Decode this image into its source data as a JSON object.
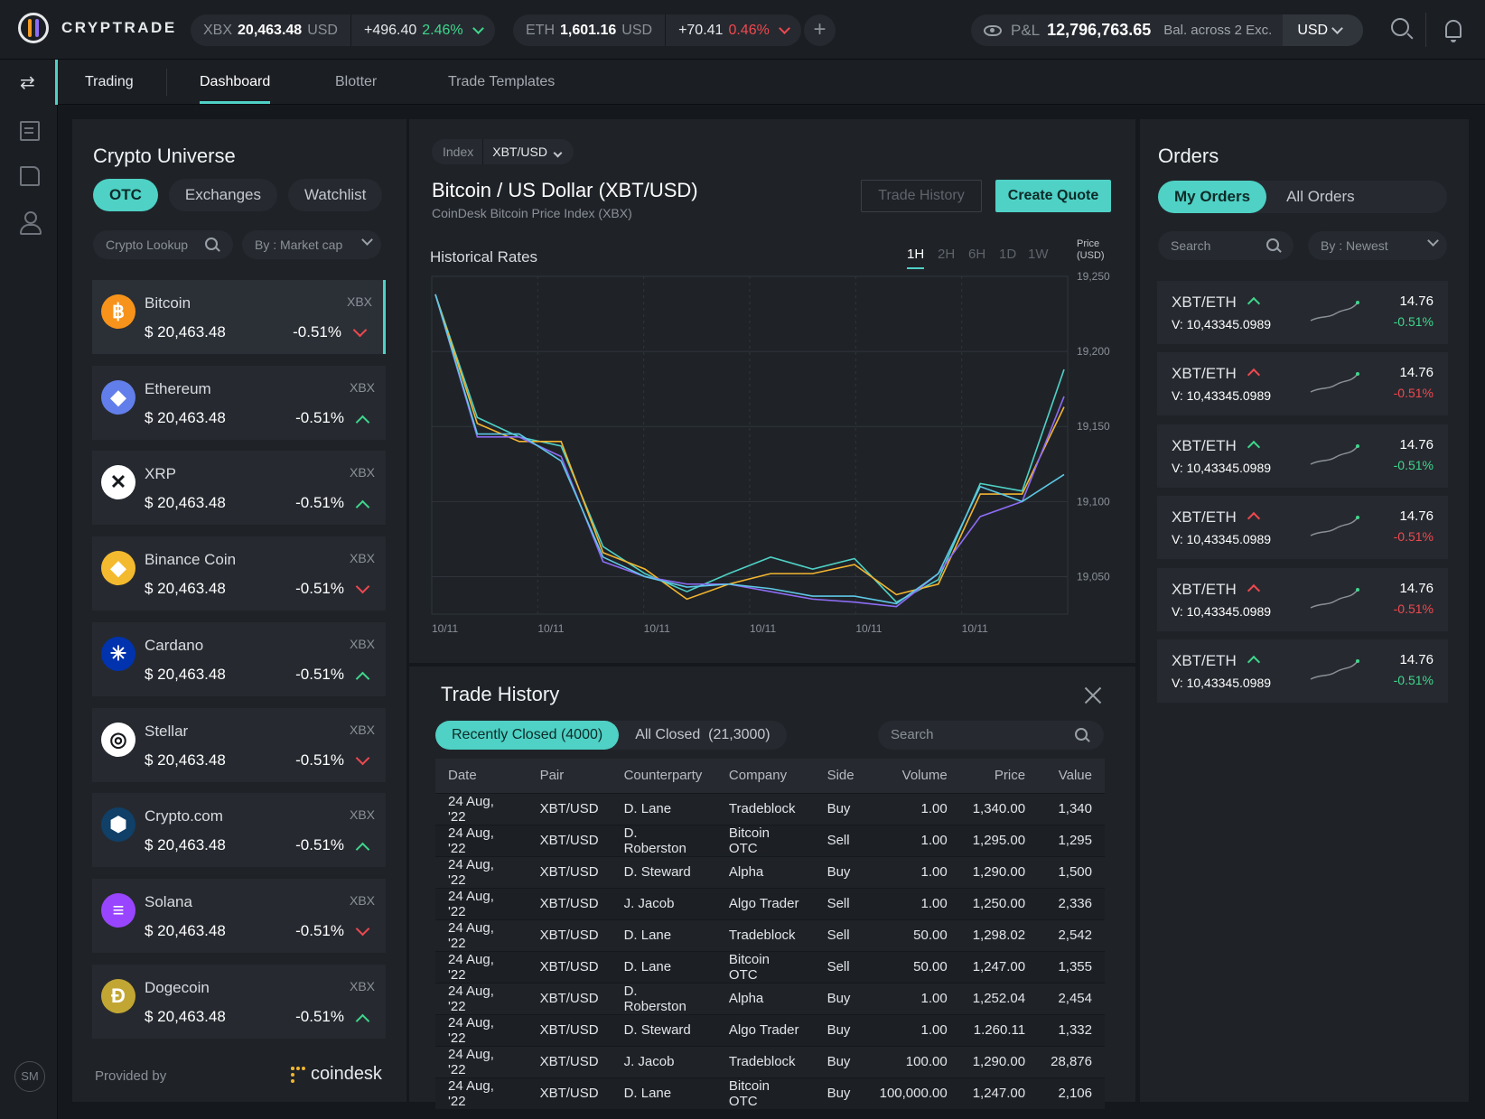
{
  "app": {
    "name": "CRYPTRADE"
  },
  "header": {
    "tickers": [
      {
        "symbol": "XBX",
        "price": "20,463.48",
        "currency": "USD",
        "change": "+496.40",
        "pct": "2.46%",
        "direction": "up"
      },
      {
        "symbol": "ETH",
        "price": "1,601.16",
        "currency": "USD",
        "change": "+70.41",
        "pct": "0.46%",
        "direction": "down"
      }
    ],
    "add_label": "+",
    "pnl_label": "P&L",
    "pnl_value": "12,796,763.65",
    "balance_label": "Bal. across 2 Exc.",
    "currency": "USD",
    "avatar_initials": "SM"
  },
  "nav": {
    "section": "Trading",
    "tabs": [
      "Dashboard",
      "Blotter",
      "Trade Templates"
    ],
    "active_tab": "Dashboard"
  },
  "universe": {
    "title": "Crypto Universe",
    "tabs": [
      "OTC",
      "Exchanges",
      "Watchlist"
    ],
    "active_tab": "OTC",
    "lookup_placeholder": "Crypto Lookup",
    "sort_label": "By : Market cap",
    "coins": [
      {
        "name": "Bitcoin",
        "source": "XBX",
        "price": "$ 20,463.48",
        "change": "-0.51%",
        "direction": "down",
        "icon": "bitcoin-icon",
        "glyph": "฿",
        "color": "#f7931a"
      },
      {
        "name": "Ethereum",
        "source": "XBX",
        "price": "$ 20,463.48",
        "change": "-0.51%",
        "direction": "up",
        "icon": "ethereum-icon",
        "glyph": "◆",
        "color": "#627eea"
      },
      {
        "name": "XRP",
        "source": "XBX",
        "price": "$ 20,463.48",
        "change": "-0.51%",
        "direction": "up",
        "icon": "xrp-icon",
        "glyph": "✕",
        "color": "#ffffff"
      },
      {
        "name": "Binance Coin",
        "source": "XBX",
        "price": "$ 20,463.48",
        "change": "-0.51%",
        "direction": "down",
        "icon": "binance-coin-icon",
        "glyph": "◆",
        "color": "#f3ba2f"
      },
      {
        "name": "Cardano",
        "source": "XBX",
        "price": "$ 20,463.48",
        "change": "-0.51%",
        "direction": "up",
        "icon": "cardano-icon",
        "glyph": "✳",
        "color": "#0033ad"
      },
      {
        "name": "Stellar",
        "source": "XBX",
        "price": "$ 20,463.48",
        "change": "-0.51%",
        "direction": "down",
        "icon": "stellar-icon",
        "glyph": "◎",
        "color": "#ffffff"
      },
      {
        "name": "Crypto.com",
        "source": "XBX",
        "price": "$ 20,463.48",
        "change": "-0.51%",
        "direction": "up",
        "icon": "crypto-com-icon",
        "glyph": "⬢",
        "color": "#103f68"
      },
      {
        "name": "Solana",
        "source": "XBX",
        "price": "$ 20,463.48",
        "change": "-0.51%",
        "direction": "down",
        "icon": "solana-icon",
        "glyph": "≡",
        "color": "#9945ff"
      },
      {
        "name": "Dogecoin",
        "source": "XBX",
        "price": "$ 20,463.48",
        "change": "-0.51%",
        "direction": "up",
        "icon": "dogecoin-icon",
        "glyph": "Đ",
        "color": "#c2a633"
      }
    ],
    "provided_by": "Provided by",
    "provider": "coindesk"
  },
  "instrument": {
    "index_label": "Index",
    "pair_select": "XBT/USD",
    "title": "Bitcoin / US Dollar (XBT/USD)",
    "subtitle": "CoinDesk Bitcoin Price Index (XBX)",
    "trade_history_button": "Trade History",
    "create_quote_button": "Create Quote",
    "chart_title": "Historical Rates",
    "timeframes": [
      "1H",
      "2H",
      "6H",
      "1D",
      "1W"
    ],
    "active_timeframe": "1H",
    "price_axis_label": "Price (USD)"
  },
  "chart_data": {
    "type": "line",
    "title": "Historical Rates",
    "ylabel": "Price (USD)",
    "ylim": [
      19025,
      19250
    ],
    "yticks": [
      19250,
      19200,
      19150,
      19100,
      19050
    ],
    "ytick_labels": [
      "19,250",
      "19,200",
      "19,150",
      "19,100",
      "19,050"
    ],
    "xtick_labels": [
      "10/11",
      "10/11",
      "10/11",
      "10/11",
      "10/11",
      "10/11"
    ],
    "grid": true,
    "x": [
      0,
      1,
      2,
      3,
      4,
      5,
      6,
      7,
      8,
      9,
      10,
      11,
      12,
      13,
      14,
      15
    ],
    "series": [
      {
        "color": "#4fd1c5",
        "values": [
          19238,
          19156,
          19143,
          19137,
          19070,
          19052,
          19040,
          19052,
          19063,
          19055,
          19062,
          19033,
          19048,
          19112,
          19107,
          19188
        ]
      },
      {
        "color": "#f3b52f",
        "values": [
          19238,
          19152,
          19140,
          19140,
          19066,
          19055,
          19035,
          19045,
          19052,
          19052,
          19058,
          19038,
          19045,
          19105,
          19105,
          19163
        ]
      },
      {
        "color": "#8e6cf5",
        "values": [
          19238,
          19143,
          19143,
          19130,
          19060,
          19050,
          19045,
          19045,
          19040,
          19035,
          19033,
          19030,
          19052,
          19090,
          19100,
          19170
        ]
      },
      {
        "color": "#5ec8e6",
        "values": [
          19238,
          19145,
          19145,
          19127,
          19063,
          19050,
          19043,
          19045,
          19042,
          19037,
          19037,
          19032,
          19052,
          19110,
          19100,
          19118
        ]
      }
    ]
  },
  "trade_history": {
    "title": "Trade History",
    "tabs": [
      "Recently Closed (4000)",
      "All Closed  (21,3000)"
    ],
    "active_tab": "Recently Closed (4000)",
    "search_placeholder": "Search",
    "columns": [
      "Date",
      "Pair",
      "Counterparty",
      "Company",
      "Side",
      "Volume",
      "Price",
      "Value"
    ],
    "rows": [
      [
        "24 Aug, '22",
        "XBT/USD",
        "D. Lane",
        "Tradeblock",
        "Buy",
        "1.00",
        "1,340.00",
        "1,340"
      ],
      [
        "24 Aug, '22",
        "XBT/USD",
        "D. Roberston",
        "Bitcoin OTC",
        "Sell",
        "1.00",
        "1,295.00",
        "1,295"
      ],
      [
        "24 Aug, '22",
        "XBT/USD",
        "D. Steward",
        "Alpha",
        "Buy",
        "1.00",
        "1,290.00",
        "1,500"
      ],
      [
        "24 Aug, '22",
        "XBT/USD",
        "J. Jacob",
        "Algo Trader",
        "Sell",
        "1.00",
        "1,250.00",
        "2,336"
      ],
      [
        "24 Aug, '22",
        "XBT/USD",
        "D. Lane",
        "Tradeblock",
        "Sell",
        "50.00",
        "1,298.02",
        "2,542"
      ],
      [
        "24 Aug, '22",
        "XBT/USD",
        "D. Lane",
        "Bitcoin OTC",
        "Sell",
        "50.00",
        "1,247.00",
        "1,355"
      ],
      [
        "24 Aug, '22",
        "XBT/USD",
        "D. Roberston",
        "Alpha",
        "Buy",
        "1.00",
        "1,252.04",
        "2,454"
      ],
      [
        "24 Aug, '22",
        "XBT/USD",
        "D. Steward",
        "Algo Trader",
        "Buy",
        "1.00",
        "1.260.11",
        "1,332"
      ],
      [
        "24 Aug, '22",
        "XBT/USD",
        "J. Jacob",
        "Tradeblock",
        "Buy",
        "100.00",
        "1,290.00",
        "28,876"
      ],
      [
        "24 Aug, '22",
        "XBT/USD",
        "D. Lane",
        "Bitcoin OTC",
        "Buy",
        "100,000.00",
        "1,247.00",
        "2,106"
      ]
    ]
  },
  "orders": {
    "title": "Orders",
    "tabs": [
      "My Orders",
      "All Orders"
    ],
    "active_tab": "My Orders",
    "search_placeholder": "Search",
    "sort_label": "By : Newest",
    "items": [
      {
        "pair": "XBT/ETH",
        "volume": "V: 10,43345.0989",
        "price": "14.76",
        "change": "-0.51%",
        "trend": "up"
      },
      {
        "pair": "XBT/ETH",
        "volume": "V: 10,43345.0989",
        "price": "14.76",
        "change": "-0.51%",
        "trend": "down"
      },
      {
        "pair": "XBT/ETH",
        "volume": "V: 10,43345.0989",
        "price": "14.76",
        "change": "-0.51%",
        "trend": "up"
      },
      {
        "pair": "XBT/ETH",
        "volume": "V: 10,43345.0989",
        "price": "14.76",
        "change": "-0.51%",
        "trend": "down"
      },
      {
        "pair": "XBT/ETH",
        "volume": "V: 10,43345.0989",
        "price": "14.76",
        "change": "-0.51%",
        "trend": "down"
      },
      {
        "pair": "XBT/ETH",
        "volume": "V: 10,43345.0989",
        "price": "14.76",
        "change": "-0.51%",
        "trend": "up"
      }
    ]
  }
}
